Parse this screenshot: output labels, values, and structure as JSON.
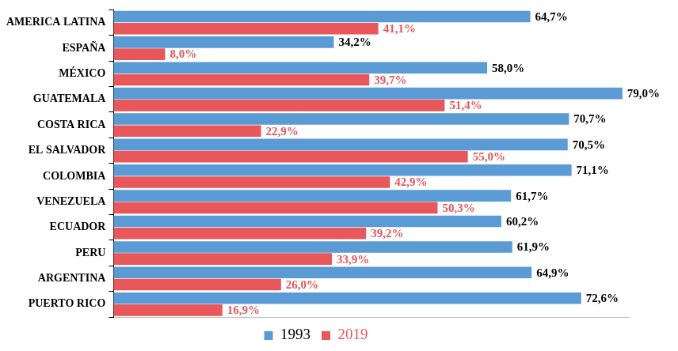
{
  "chart_data": {
    "type": "bar",
    "orientation": "horizontal",
    "categories": [
      "AMERICA LATINA",
      "ESPAÑA",
      "MÉXICO",
      "GUATEMALA",
      "COSTA RICA",
      "EL SALVADOR",
      "COLOMBIA",
      "VENEZUELA",
      "ECUADOR",
      "PERU",
      "ARGENTINA",
      "PUERTO RICO"
    ],
    "series": [
      {
        "name": "1993",
        "color": "#5b9bd5",
        "values": [
          64.7,
          34.2,
          58.0,
          79.0,
          70.7,
          70.5,
          71.1,
          61.7,
          60.2,
          61.9,
          64.9,
          72.6
        ],
        "value_labels": [
          "64,7%",
          "34,2%",
          "58,0%",
          "79,0%",
          "70,7%",
          "70,5%",
          "71,1%",
          "61,7%",
          "60,2%",
          "61,9%",
          "64,9%",
          "72,6%"
        ]
      },
      {
        "name": "2019",
        "color": "#e8575a",
        "values": [
          41.1,
          8.0,
          39.7,
          51.4,
          22.9,
          55.0,
          42.9,
          50.3,
          39.2,
          33.9,
          26.0,
          16.9
        ],
        "value_labels": [
          "41,1%",
          "8,0%",
          "39,7%",
          "51,4%",
          "22,9%",
          "55,0%",
          "42,9%",
          "50,3%",
          "39,2%",
          "33,9%",
          "26,0%",
          "16,9%"
        ]
      }
    ],
    "xlim": [
      0,
      80
    ],
    "data_labels": true,
    "legend": "bottom",
    "grid": false,
    "tick_labels": "y"
  }
}
